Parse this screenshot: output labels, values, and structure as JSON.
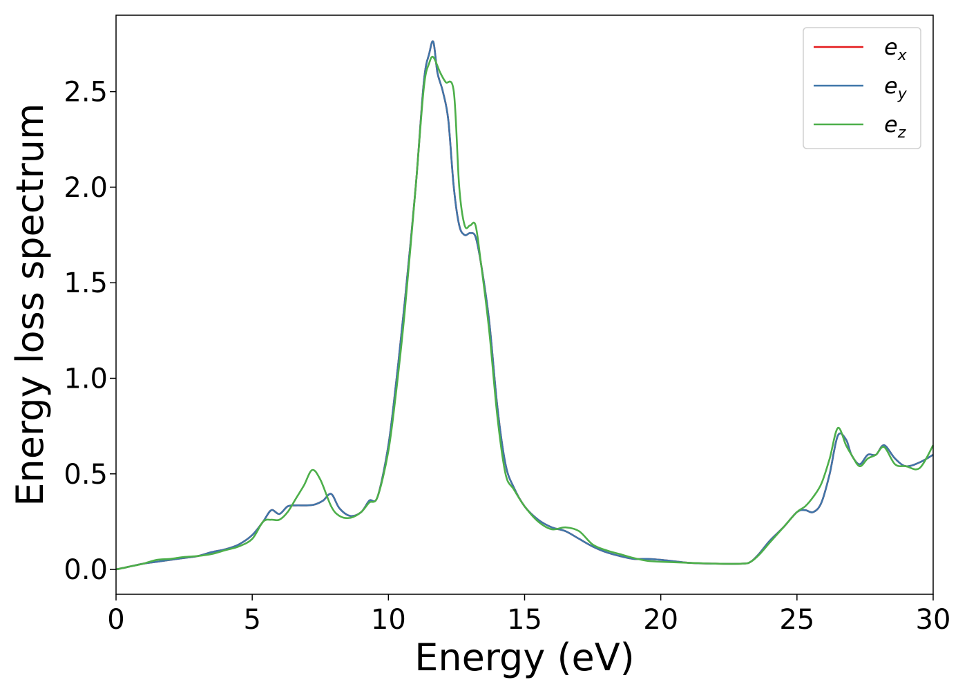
{
  "chart_data": {
    "type": "line",
    "title": "",
    "xlabel": "Energy (eV)",
    "ylabel": "Energy loss spectrum",
    "xlim": [
      0,
      30
    ],
    "ylim": [
      -0.13,
      2.9
    ],
    "xticks": [
      0,
      5,
      10,
      15,
      20,
      25,
      30
    ],
    "yticks": [
      0.0,
      0.5,
      1.0,
      1.5,
      2.0,
      2.5
    ],
    "xtick_labels": [
      "0",
      "5",
      "10",
      "15",
      "20",
      "25",
      "30"
    ],
    "ytick_labels": [
      "0.0",
      "0.5",
      "1.0",
      "1.5",
      "2.0",
      "2.5"
    ],
    "grid": false,
    "legend": "top-right",
    "series": [
      {
        "name": "e",
        "subscript": "x",
        "color": "#e41a1c",
        "x": [
          0,
          0.5,
          1,
          1.5,
          2,
          2.5,
          3,
          3.5,
          4,
          4.5,
          5,
          5.4,
          5.7,
          6,
          6.3,
          6.6,
          7,
          7.3,
          7.6,
          7.9,
          8.2,
          8.6,
          9,
          9.3,
          9.6,
          10,
          10.3,
          10.6,
          11,
          11.3,
          11.5,
          11.65,
          11.8,
          12,
          12.2,
          12.4,
          12.6,
          12.8,
          13,
          13.2,
          13.4,
          13.7,
          14,
          14.3,
          14.6,
          15,
          15.5,
          16,
          16.5,
          17,
          17.5,
          18,
          18.5,
          19,
          19.5,
          20,
          21,
          22,
          23,
          23.3,
          23.6,
          24,
          24.5,
          25,
          25.3,
          25.6,
          25.9,
          26.2,
          26.5,
          26.8,
          27,
          27.3,
          27.6,
          27.9,
          28.2,
          28.6,
          29,
          29.5,
          30
        ],
        "y": [
          0,
          0.015,
          0.03,
          0.04,
          0.05,
          0.06,
          0.07,
          0.09,
          0.105,
          0.13,
          0.18,
          0.25,
          0.31,
          0.29,
          0.33,
          0.335,
          0.335,
          0.34,
          0.36,
          0.395,
          0.32,
          0.28,
          0.3,
          0.36,
          0.38,
          0.65,
          1.0,
          1.4,
          2.0,
          2.55,
          2.7,
          2.76,
          2.6,
          2.5,
          2.35,
          2.0,
          1.8,
          1.75,
          1.76,
          1.74,
          1.6,
          1.3,
          0.85,
          0.55,
          0.43,
          0.33,
          0.26,
          0.22,
          0.2,
          0.16,
          0.12,
          0.09,
          0.07,
          0.055,
          0.055,
          0.05,
          0.035,
          0.03,
          0.03,
          0.04,
          0.08,
          0.15,
          0.22,
          0.3,
          0.31,
          0.3,
          0.35,
          0.5,
          0.7,
          0.68,
          0.6,
          0.55,
          0.6,
          0.6,
          0.65,
          0.58,
          0.54,
          0.56,
          0.6
        ]
      },
      {
        "name": "e",
        "subscript": "y",
        "color": "#3f76a9",
        "x": [
          0,
          0.5,
          1,
          1.5,
          2,
          2.5,
          3,
          3.5,
          4,
          4.5,
          5,
          5.4,
          5.7,
          6,
          6.3,
          6.6,
          7,
          7.3,
          7.6,
          7.9,
          8.2,
          8.6,
          9,
          9.3,
          9.6,
          10,
          10.3,
          10.6,
          11,
          11.3,
          11.5,
          11.65,
          11.8,
          12,
          12.2,
          12.4,
          12.6,
          12.8,
          13,
          13.2,
          13.4,
          13.7,
          14,
          14.3,
          14.6,
          15,
          15.5,
          16,
          16.5,
          17,
          17.5,
          18,
          18.5,
          19,
          19.5,
          20,
          21,
          22,
          23,
          23.3,
          23.6,
          24,
          24.5,
          25,
          25.3,
          25.6,
          25.9,
          26.2,
          26.5,
          26.8,
          27,
          27.3,
          27.6,
          27.9,
          28.2,
          28.6,
          29,
          29.5,
          30
        ],
        "y": [
          0,
          0.015,
          0.03,
          0.04,
          0.05,
          0.06,
          0.07,
          0.09,
          0.105,
          0.13,
          0.18,
          0.25,
          0.31,
          0.29,
          0.33,
          0.335,
          0.335,
          0.34,
          0.36,
          0.395,
          0.32,
          0.28,
          0.3,
          0.36,
          0.38,
          0.65,
          1.0,
          1.4,
          2.0,
          2.55,
          2.7,
          2.76,
          2.6,
          2.5,
          2.35,
          2.0,
          1.8,
          1.75,
          1.76,
          1.74,
          1.6,
          1.3,
          0.85,
          0.55,
          0.43,
          0.33,
          0.26,
          0.22,
          0.2,
          0.16,
          0.12,
          0.09,
          0.07,
          0.055,
          0.055,
          0.05,
          0.035,
          0.03,
          0.03,
          0.04,
          0.08,
          0.15,
          0.22,
          0.3,
          0.31,
          0.3,
          0.35,
          0.5,
          0.7,
          0.68,
          0.6,
          0.55,
          0.6,
          0.6,
          0.65,
          0.58,
          0.54,
          0.56,
          0.6
        ]
      },
      {
        "name": "e",
        "subscript": "z",
        "color": "#4daf4a",
        "x": [
          0,
          0.5,
          1,
          1.5,
          2,
          2.5,
          3,
          3.5,
          4,
          4.5,
          5,
          5.4,
          5.7,
          6,
          6.3,
          6.6,
          6.9,
          7.2,
          7.5,
          7.9,
          8.2,
          8.6,
          9,
          9.3,
          9.6,
          10,
          10.3,
          10.6,
          11,
          11.3,
          11.5,
          11.65,
          11.9,
          12.1,
          12.4,
          12.6,
          12.8,
          13,
          13.2,
          13.4,
          13.7,
          14,
          14.3,
          14.6,
          15,
          15.5,
          16,
          16.5,
          17,
          17.5,
          18,
          18.5,
          19,
          19.5,
          20,
          21,
          22,
          23,
          23.3,
          23.6,
          24,
          24.5,
          25,
          25.3,
          25.6,
          25.9,
          26.2,
          26.5,
          26.8,
          27,
          27.3,
          27.6,
          27.9,
          28.2,
          28.6,
          29,
          29.5,
          30
        ],
        "y": [
          0,
          0.015,
          0.03,
          0.05,
          0.055,
          0.065,
          0.07,
          0.08,
          0.1,
          0.12,
          0.16,
          0.25,
          0.26,
          0.26,
          0.3,
          0.37,
          0.44,
          0.52,
          0.47,
          0.33,
          0.28,
          0.27,
          0.3,
          0.35,
          0.38,
          0.62,
          0.95,
          1.35,
          2.0,
          2.52,
          2.65,
          2.68,
          2.6,
          2.55,
          2.5,
          2.0,
          1.8,
          1.8,
          1.8,
          1.6,
          1.25,
          0.8,
          0.5,
          0.42,
          0.33,
          0.25,
          0.21,
          0.22,
          0.2,
          0.13,
          0.1,
          0.08,
          0.06,
          0.045,
          0.04,
          0.035,
          0.03,
          0.03,
          0.04,
          0.075,
          0.14,
          0.22,
          0.3,
          0.33,
          0.38,
          0.45,
          0.58,
          0.74,
          0.65,
          0.6,
          0.54,
          0.58,
          0.6,
          0.64,
          0.55,
          0.54,
          0.53,
          0.65
        ]
      }
    ]
  }
}
